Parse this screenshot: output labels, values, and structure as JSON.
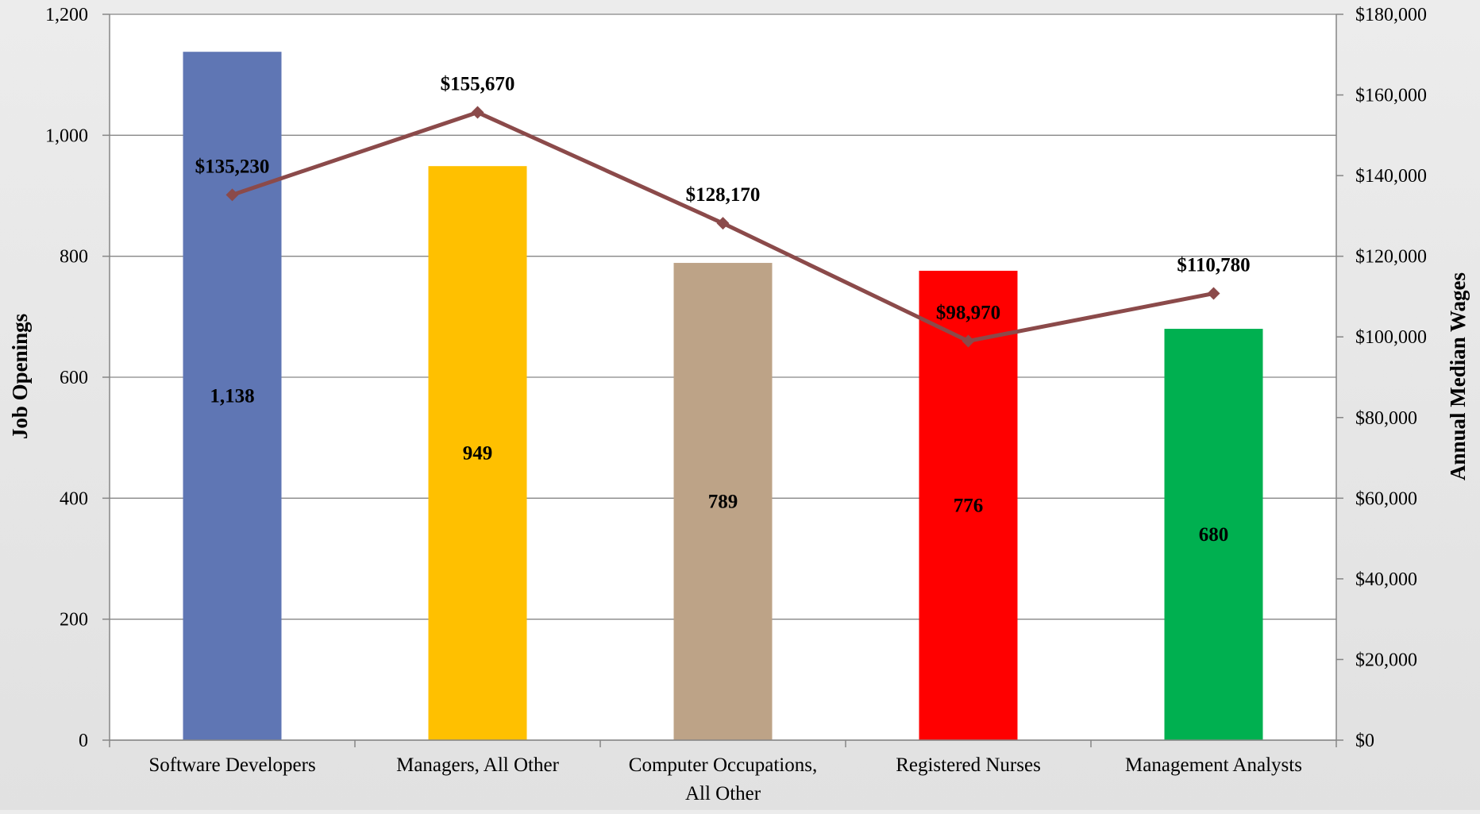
{
  "chart_data": {
    "type": "bar",
    "categories": [
      [
        "Software Developers"
      ],
      [
        "Managers, All Other"
      ],
      [
        "Computer Occupations,",
        "All Other"
      ],
      [
        "Registered Nurses"
      ],
      [
        "Management Analysts"
      ]
    ],
    "series": [
      {
        "axis": "left",
        "chart": "bar",
        "values": [
          1138,
          949,
          789,
          776,
          680
        ],
        "labels": [
          "1,138",
          "949",
          "789",
          "776",
          "680"
        ],
        "colors": [
          "#5f76b4",
          "#ffc000",
          "#bda387",
          "#ff0000",
          "#00b050"
        ]
      },
      {
        "axis": "right",
        "chart": "line",
        "values": [
          135230,
          155670,
          128170,
          98970,
          110780
        ],
        "labels": [
          "$135,230",
          "$155,670",
          "$128,170",
          "$98,970",
          "$110,780"
        ],
        "color": "#8b4a4a"
      }
    ],
    "ylabel": "Job Openings",
    "y2label": "Annual Median Wages",
    "ylim": [
      0,
      1200
    ],
    "y2lim": [
      0,
      180000
    ],
    "yticks": [
      0,
      200,
      400,
      600,
      800,
      1000,
      1200
    ],
    "yticklabels": [
      "0",
      "200",
      "400",
      "600",
      "800",
      "1,000",
      "1,200"
    ],
    "y2ticks": [
      0,
      20000,
      40000,
      60000,
      80000,
      100000,
      120000,
      140000,
      160000,
      180000
    ],
    "y2ticklabels": [
      "$0",
      "$20,000",
      "$40,000",
      "$60,000",
      "$80,000",
      "$100,000",
      "$120,000",
      "$140,000",
      "$160,000",
      "$180,000"
    ],
    "grid": true,
    "colors": {
      "plot_background": "#ffffff",
      "gridline": "#868686",
      "axis": "#868686"
    }
  }
}
